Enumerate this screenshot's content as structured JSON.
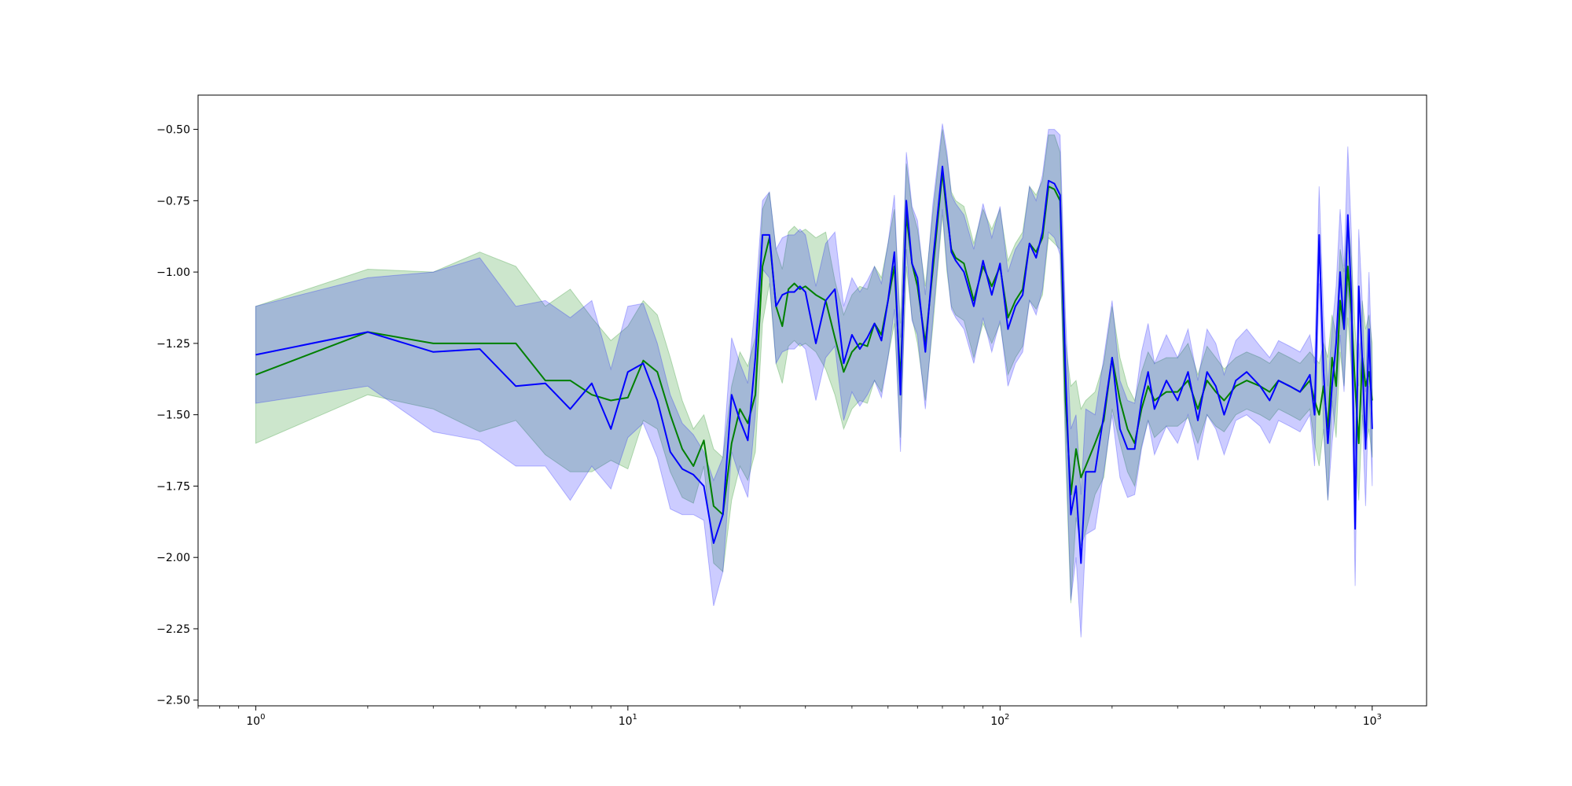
{
  "chart_data": {
    "type": "line",
    "title": "",
    "xlabel": "",
    "ylabel": "",
    "xscale": "log",
    "xlim": [
      0.7,
      1400
    ],
    "ylim": [
      -2.52,
      -0.38
    ],
    "grid": false,
    "legend": "none",
    "x_ticks": [
      {
        "value": 1,
        "base": "10",
        "exp": "0"
      },
      {
        "value": 10,
        "base": "10",
        "exp": "1"
      },
      {
        "value": 100,
        "base": "10",
        "exp": "2"
      },
      {
        "value": 1000,
        "base": "10",
        "exp": "3"
      }
    ],
    "y_ticks": [
      {
        "value": -0.5,
        "label": "−0.50"
      },
      {
        "value": -0.75,
        "label": "−0.75"
      },
      {
        "value": -1.0,
        "label": "−1.00"
      },
      {
        "value": -1.25,
        "label": "−1.25"
      },
      {
        "value": -1.5,
        "label": "−1.50"
      },
      {
        "value": -1.75,
        "label": "−1.75"
      },
      {
        "value": -2.0,
        "label": "−2.00"
      },
      {
        "value": -2.25,
        "label": "−2.25"
      },
      {
        "value": -2.5,
        "label": "−2.50"
      }
    ],
    "series": [
      {
        "color": "#008000",
        "band_color": "#008000",
        "x": [
          1,
          2,
          3,
          4,
          5,
          6,
          7,
          8,
          9,
          10,
          11,
          12,
          13,
          14,
          15,
          16,
          17,
          18,
          19,
          20,
          21,
          22,
          23,
          24,
          25,
          26,
          27,
          28,
          29,
          30,
          32,
          34,
          36,
          38,
          40,
          42,
          44,
          46,
          48,
          50,
          52,
          54,
          56,
          58,
          60,
          63,
          66,
          70,
          72,
          74,
          76,
          80,
          85,
          90,
          95,
          100,
          105,
          110,
          115,
          120,
          125,
          130,
          135,
          140,
          145,
          150,
          155,
          160,
          165,
          170,
          180,
          190,
          200,
          210,
          220,
          230,
          240,
          250,
          260,
          280,
          300,
          320,
          340,
          360,
          380,
          400,
          430,
          460,
          500,
          530,
          560,
          600,
          640,
          680,
          700,
          720,
          740,
          760,
          780,
          800,
          820,
          840,
          860,
          880,
          900,
          920,
          940,
          960,
          980,
          1000
        ],
        "y": [
          -1.36,
          -1.21,
          -1.25,
          -1.25,
          -1.25,
          -1.38,
          -1.38,
          -1.43,
          -1.45,
          -1.44,
          -1.31,
          -1.35,
          -1.5,
          -1.62,
          -1.68,
          -1.59,
          -1.82,
          -1.85,
          -1.6,
          -1.48,
          -1.53,
          -1.43,
          -0.98,
          -0.88,
          -1.12,
          -1.19,
          -1.06,
          -1.04,
          -1.06,
          -1.05,
          -1.08,
          -1.1,
          -1.23,
          -1.35,
          -1.28,
          -1.25,
          -1.26,
          -1.18,
          -1.22,
          -1.1,
          -0.98,
          -1.38,
          -0.8,
          -0.97,
          -1.05,
          -1.25,
          -0.99,
          -0.65,
          -0.8,
          -0.92,
          -0.95,
          -0.97,
          -1.1,
          -0.98,
          -1.05,
          -0.98,
          -1.16,
          -1.1,
          -1.06,
          -0.9,
          -0.93,
          -0.88,
          -0.7,
          -0.71,
          -0.75,
          -1.45,
          -1.78,
          -1.62,
          -1.72,
          -1.68,
          -1.6,
          -1.52,
          -1.3,
          -1.45,
          -1.55,
          -1.6,
          -1.48,
          -1.4,
          -1.45,
          -1.42,
          -1.42,
          -1.38,
          -1.48,
          -1.38,
          -1.42,
          -1.45,
          -1.4,
          -1.38,
          -1.4,
          -1.42,
          -1.38,
          -1.4,
          -1.42,
          -1.38,
          -1.45,
          -1.5,
          -1.4,
          -1.55,
          -1.3,
          -1.4,
          -1.1,
          -1.2,
          -0.98,
          -1.15,
          -1.4,
          -1.6,
          -1.3,
          -1.4,
          -1.35,
          -1.45
        ],
        "upper": [
          -1.12,
          -0.99,
          -1.0,
          -0.93,
          -0.98,
          -1.12,
          -1.06,
          -1.16,
          -1.24,
          -1.19,
          -1.1,
          -1.15,
          -1.3,
          -1.45,
          -1.55,
          -1.5,
          -1.62,
          -1.65,
          -1.4,
          -1.28,
          -1.33,
          -1.23,
          -0.78,
          -0.72,
          -0.92,
          -0.99,
          -0.86,
          -0.84,
          -0.86,
          -0.85,
          -0.88,
          -0.86,
          -1.03,
          -1.15,
          -1.08,
          -1.05,
          -1.06,
          -0.98,
          -1.02,
          -0.9,
          -0.78,
          -1.18,
          -0.62,
          -0.78,
          -0.85,
          -1.05,
          -0.79,
          -0.5,
          -0.6,
          -0.72,
          -0.75,
          -0.77,
          -0.9,
          -0.78,
          -0.85,
          -0.78,
          -0.96,
          -0.9,
          -0.86,
          -0.7,
          -0.73,
          -0.68,
          -0.52,
          -0.52,
          -0.58,
          -1.25,
          -1.4,
          -1.38,
          -1.48,
          -1.45,
          -1.42,
          -1.32,
          -1.12,
          -1.3,
          -1.4,
          -1.45,
          -1.35,
          -1.28,
          -1.32,
          -1.3,
          -1.3,
          -1.25,
          -1.36,
          -1.26,
          -1.3,
          -1.34,
          -1.3,
          -1.28,
          -1.3,
          -1.32,
          -1.28,
          -1.3,
          -1.32,
          -1.28,
          -1.3,
          -1.32,
          -1.25,
          -1.3,
          -1.15,
          -1.22,
          -0.92,
          -1.0,
          -0.8,
          -0.95,
          -1.2,
          -1.4,
          -1.1,
          -1.2,
          -1.15,
          -1.25
        ],
        "lower": [
          -1.6,
          -1.43,
          -1.48,
          -1.56,
          -1.52,
          -1.64,
          -1.7,
          -1.7,
          -1.66,
          -1.69,
          -1.52,
          -1.55,
          -1.7,
          -1.79,
          -1.81,
          -1.68,
          -2.02,
          -2.05,
          -1.8,
          -1.68,
          -1.73,
          -1.63,
          -1.18,
          -1.04,
          -1.32,
          -1.39,
          -1.26,
          -1.24,
          -1.26,
          -1.25,
          -1.28,
          -1.34,
          -1.43,
          -1.55,
          -1.48,
          -1.45,
          -1.46,
          -1.38,
          -1.42,
          -1.3,
          -1.18,
          -1.58,
          -0.98,
          -1.16,
          -1.25,
          -1.45,
          -1.19,
          -0.8,
          -1.0,
          -1.12,
          -1.15,
          -1.17,
          -1.3,
          -1.18,
          -1.25,
          -1.18,
          -1.36,
          -1.3,
          -1.26,
          -1.1,
          -1.13,
          -1.08,
          -0.88,
          -0.9,
          -0.92,
          -1.65,
          -2.16,
          -1.86,
          -1.96,
          -1.91,
          -1.78,
          -1.72,
          -1.48,
          -1.6,
          -1.7,
          -1.75,
          -1.61,
          -1.52,
          -1.58,
          -1.54,
          -1.54,
          -1.51,
          -1.6,
          -1.5,
          -1.54,
          -1.56,
          -1.5,
          -1.48,
          -1.5,
          -1.52,
          -1.48,
          -1.5,
          -1.52,
          -1.48,
          -1.6,
          -1.68,
          -1.55,
          -1.8,
          -1.45,
          -1.58,
          -1.28,
          -1.4,
          -1.16,
          -1.35,
          -1.6,
          -1.8,
          -1.5,
          -1.6,
          -1.55,
          -1.65
        ]
      },
      {
        "color": "#0000ff",
        "band_color": "#0000ff",
        "x": [
          1,
          2,
          3,
          4,
          5,
          6,
          7,
          8,
          9,
          10,
          11,
          12,
          13,
          14,
          15,
          16,
          17,
          18,
          19,
          20,
          21,
          22,
          23,
          24,
          25,
          26,
          27,
          28,
          29,
          30,
          32,
          34,
          36,
          38,
          40,
          42,
          44,
          46,
          48,
          50,
          52,
          54,
          56,
          58,
          60,
          63,
          66,
          70,
          72,
          74,
          76,
          80,
          85,
          90,
          95,
          100,
          105,
          110,
          115,
          120,
          125,
          130,
          135,
          140,
          145,
          150,
          155,
          160,
          165,
          170,
          180,
          190,
          200,
          210,
          220,
          230,
          240,
          250,
          260,
          280,
          300,
          320,
          340,
          360,
          380,
          400,
          430,
          460,
          500,
          530,
          560,
          600,
          640,
          680,
          700,
          720,
          740,
          760,
          780,
          800,
          820,
          840,
          860,
          880,
          900,
          920,
          940,
          960,
          980,
          1000
        ],
        "y": [
          -1.29,
          -1.21,
          -1.28,
          -1.27,
          -1.4,
          -1.39,
          -1.48,
          -1.39,
          -1.55,
          -1.35,
          -1.32,
          -1.45,
          -1.63,
          -1.69,
          -1.71,
          -1.75,
          -1.95,
          -1.85,
          -1.43,
          -1.52,
          -1.59,
          -1.3,
          -0.87,
          -0.87,
          -1.12,
          -1.08,
          -1.07,
          -1.07,
          -1.05,
          -1.07,
          -1.25,
          -1.1,
          -1.06,
          -1.32,
          -1.22,
          -1.27,
          -1.23,
          -1.18,
          -1.24,
          -1.1,
          -0.93,
          -1.43,
          -0.75,
          -0.97,
          -1.02,
          -1.28,
          -0.96,
          -0.63,
          -0.78,
          -0.93,
          -0.96,
          -1.0,
          -1.12,
          -0.96,
          -1.08,
          -0.97,
          -1.2,
          -1.12,
          -1.08,
          -0.9,
          -0.95,
          -0.86,
          -0.68,
          -0.69,
          -0.73,
          -1.36,
          -1.85,
          -1.75,
          -2.02,
          -1.7,
          -1.7,
          -1.5,
          -1.3,
          -1.55,
          -1.62,
          -1.62,
          -1.45,
          -1.35,
          -1.48,
          -1.38,
          -1.45,
          -1.35,
          -1.52,
          -1.35,
          -1.4,
          -1.5,
          -1.38,
          -1.35,
          -1.4,
          -1.45,
          -1.38,
          -1.4,
          -1.42,
          -1.36,
          -1.5,
          -0.87,
          -1.35,
          -1.6,
          -1.4,
          -1.25,
          -1.0,
          -1.2,
          -0.8,
          -1.1,
          -1.9,
          -1.05,
          -1.3,
          -1.62,
          -1.2,
          -1.55
        ],
        "upper": [
          -1.12,
          -1.02,
          -1.0,
          -0.95,
          -1.12,
          -1.1,
          -1.16,
          -1.1,
          -1.34,
          -1.12,
          -1.11,
          -1.25,
          -1.43,
          -1.53,
          -1.57,
          -1.63,
          -1.73,
          -1.65,
          -1.23,
          -1.32,
          -1.39,
          -1.1,
          -0.75,
          -0.72,
          -0.92,
          -0.88,
          -0.87,
          -0.87,
          -0.85,
          -0.87,
          -1.05,
          -0.9,
          -0.86,
          -1.12,
          -1.02,
          -1.07,
          -1.03,
          -0.98,
          -1.04,
          -0.9,
          -0.73,
          -1.23,
          -0.58,
          -0.77,
          -0.82,
          -1.08,
          -0.76,
          -0.48,
          -0.58,
          -0.73,
          -0.76,
          -0.8,
          -0.92,
          -0.76,
          -0.88,
          -0.77,
          -1.0,
          -0.92,
          -0.88,
          -0.7,
          -0.75,
          -0.66,
          -0.5,
          -0.5,
          -0.52,
          -1.16,
          -1.55,
          -1.5,
          -1.78,
          -1.48,
          -1.5,
          -1.3,
          -1.1,
          -1.38,
          -1.45,
          -1.46,
          -1.28,
          -1.18,
          -1.32,
          -1.22,
          -1.3,
          -1.2,
          -1.38,
          -1.2,
          -1.25,
          -1.36,
          -1.24,
          -1.2,
          -1.26,
          -1.3,
          -1.24,
          -1.26,
          -1.28,
          -1.22,
          -1.32,
          -0.7,
          -1.15,
          -1.4,
          -1.2,
          -1.05,
          -0.78,
          -0.98,
          -0.56,
          -0.88,
          -1.7,
          -0.85,
          -1.1,
          -1.42,
          -1.0,
          -1.35
        ],
        "lower": [
          -1.46,
          -1.4,
          -1.56,
          -1.59,
          -1.68,
          -1.68,
          -1.8,
          -1.68,
          -1.76,
          -1.58,
          -1.53,
          -1.65,
          -1.83,
          -1.85,
          -1.85,
          -1.87,
          -2.17,
          -2.05,
          -1.63,
          -1.72,
          -1.79,
          -1.5,
          -0.99,
          -1.02,
          -1.32,
          -1.28,
          -1.27,
          -1.27,
          -1.25,
          -1.27,
          -1.45,
          -1.3,
          -1.26,
          -1.52,
          -1.42,
          -1.47,
          -1.43,
          -1.38,
          -1.44,
          -1.3,
          -1.13,
          -1.63,
          -0.92,
          -1.17,
          -1.22,
          -1.48,
          -1.16,
          -0.78,
          -0.98,
          -1.13,
          -1.16,
          -1.2,
          -1.32,
          -1.16,
          -1.28,
          -1.17,
          -1.4,
          -1.32,
          -1.28,
          -1.1,
          -1.15,
          -1.06,
          -0.86,
          -0.88,
          -0.94,
          -1.56,
          -2.15,
          -2.0,
          -2.28,
          -1.92,
          -1.9,
          -1.7,
          -1.5,
          -1.72,
          -1.79,
          -1.78,
          -1.62,
          -1.52,
          -1.64,
          -1.54,
          -1.6,
          -1.5,
          -1.66,
          -1.5,
          -1.55,
          -1.64,
          -1.52,
          -1.5,
          -1.54,
          -1.6,
          -1.52,
          -1.54,
          -1.56,
          -1.5,
          -1.68,
          -1.04,
          -1.55,
          -1.8,
          -1.6,
          -1.45,
          -1.22,
          -1.42,
          -1.04,
          -1.32,
          -2.1,
          -1.25,
          -1.5,
          -1.82,
          -1.4,
          -1.75
        ]
      }
    ]
  }
}
